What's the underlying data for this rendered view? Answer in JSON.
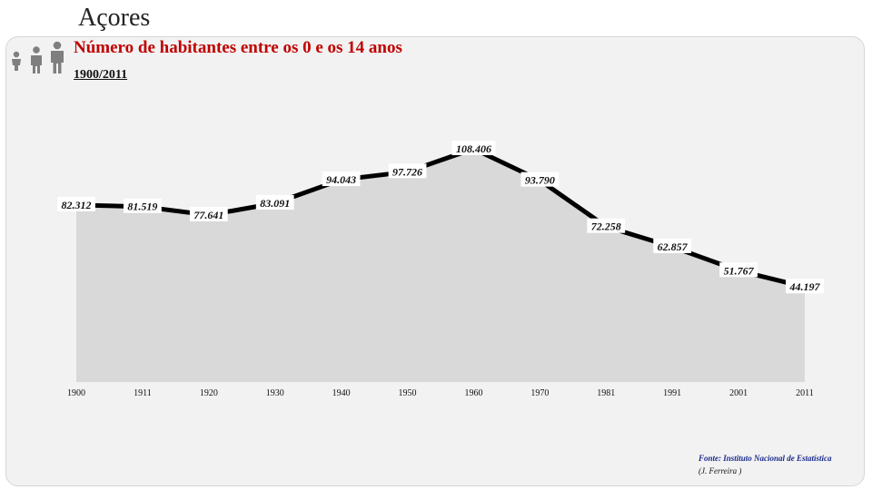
{
  "header": {
    "title": "Açores"
  },
  "chart_data": {
    "type": "area",
    "title": "Número de habitantes entre os 0 e os 14 anos",
    "subtitle": "1900/2011",
    "categories": [
      "1900",
      "1911",
      "1920",
      "1930",
      "1940",
      "1950",
      "1960",
      "1970",
      "1981",
      "1991",
      "2001",
      "2011"
    ],
    "values": [
      82312,
      81519,
      77641,
      83091,
      94043,
      97726,
      108406,
      93790,
      72258,
      62857,
      51767,
      44197
    ],
    "value_labels": [
      "82.312",
      "81.519",
      "77.641",
      "83.091",
      "94.043",
      "97.726",
      "108.406",
      "93.790",
      "72.258",
      "62.857",
      "51.767",
      "44.197"
    ],
    "legend": "none",
    "grid": false,
    "colors": {
      "line": "#000000",
      "area": "#d9d9d9",
      "title": "#c00000",
      "source": "#1a2a8c"
    }
  },
  "footer": {
    "source": "Fonte: Instituto Nacional de Estatística",
    "author": "(J. Ferreira )"
  },
  "icons": {
    "people": "people-icon"
  }
}
